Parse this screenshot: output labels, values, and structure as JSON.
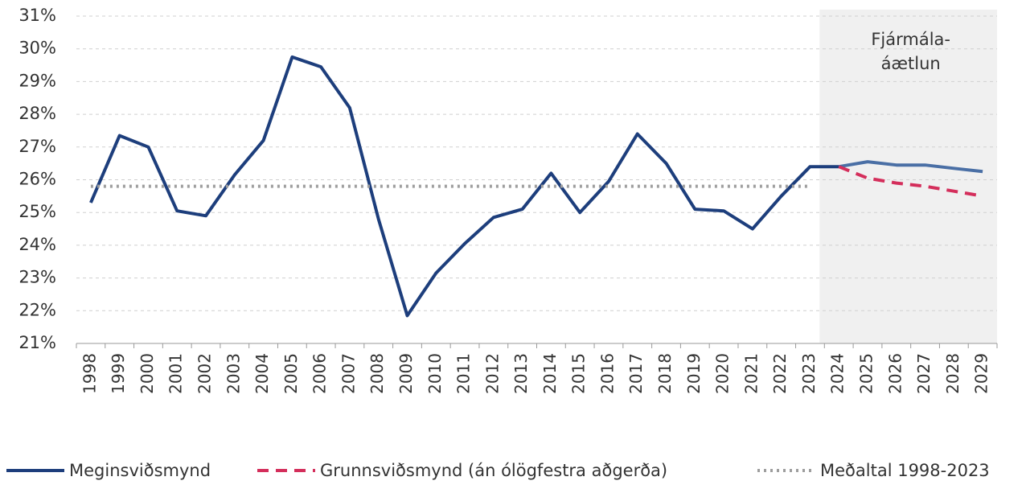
{
  "chart_data": {
    "type": "line",
    "categories": [
      "1998",
      "1999",
      "2000",
      "2001",
      "2002",
      "2003",
      "2004",
      "2005",
      "2006",
      "2007",
      "2008",
      "2009",
      "2010",
      "2011",
      "2012",
      "2013",
      "2014",
      "2015",
      "2016",
      "2017",
      "2018",
      "2019",
      "2020",
      "2021",
      "2022",
      "2023",
      "2024",
      "2025",
      "2026",
      "2027",
      "2028",
      "2029"
    ],
    "series": [
      {
        "name": "Meginsviðsmynd",
        "color": "#1d3e7c",
        "forecast_color": "#4a6fa5",
        "style": "solid",
        "values": [
          25.3,
          27.35,
          27.0,
          25.05,
          24.9,
          26.15,
          27.2,
          29.75,
          29.45,
          28.2,
          24.8,
          21.85,
          23.15,
          24.05,
          24.85,
          25.1,
          26.2,
          25.0,
          25.95,
          27.4,
          26.5,
          25.1,
          25.05,
          24.5,
          25.5,
          26.4,
          26.4,
          26.55,
          26.45,
          26.45,
          26.35,
          26.25
        ]
      },
      {
        "name": "Grunnsviðsmynd (án ólögfestra aðgerða)",
        "color": "#d42e5b",
        "style": "dashed",
        "values": [
          null,
          null,
          null,
          null,
          null,
          null,
          null,
          null,
          null,
          null,
          null,
          null,
          null,
          null,
          null,
          null,
          null,
          null,
          null,
          null,
          null,
          null,
          null,
          null,
          null,
          null,
          26.4,
          26.05,
          25.9,
          25.8,
          25.65,
          25.5
        ]
      },
      {
        "name": "Meðaltal 1998-2023",
        "color": "#9e9e9e",
        "style": "dotted",
        "values": [
          25.8,
          25.8,
          25.8,
          25.8,
          25.8,
          25.8,
          25.8,
          25.8,
          25.8,
          25.8,
          25.8,
          25.8,
          25.8,
          25.8,
          25.8,
          25.8,
          25.8,
          25.8,
          25.8,
          25.8,
          25.8,
          25.8,
          25.8,
          25.8,
          25.8,
          25.8,
          null,
          null,
          null,
          null,
          null,
          null
        ]
      }
    ],
    "shaded_region": {
      "from": "2024",
      "label": [
        "Fjármála-",
        "áætlun"
      ]
    },
    "ylim": [
      21,
      31
    ],
    "yticks": [
      {
        "value": 21,
        "label": "21%"
      },
      {
        "value": 22,
        "label": "22%"
      },
      {
        "value": 23,
        "label": "23%"
      },
      {
        "value": 24,
        "label": "24%"
      },
      {
        "value": 25,
        "label": "25%"
      },
      {
        "value": 26,
        "label": "26%"
      },
      {
        "value": 27,
        "label": "27%"
      },
      {
        "value": 28,
        "label": "28%"
      },
      {
        "value": 29,
        "label": "29%"
      },
      {
        "value": 30,
        "label": "30%"
      },
      {
        "value": 31,
        "label": "31%"
      }
    ],
    "grid": true,
    "legend": "bottom"
  }
}
